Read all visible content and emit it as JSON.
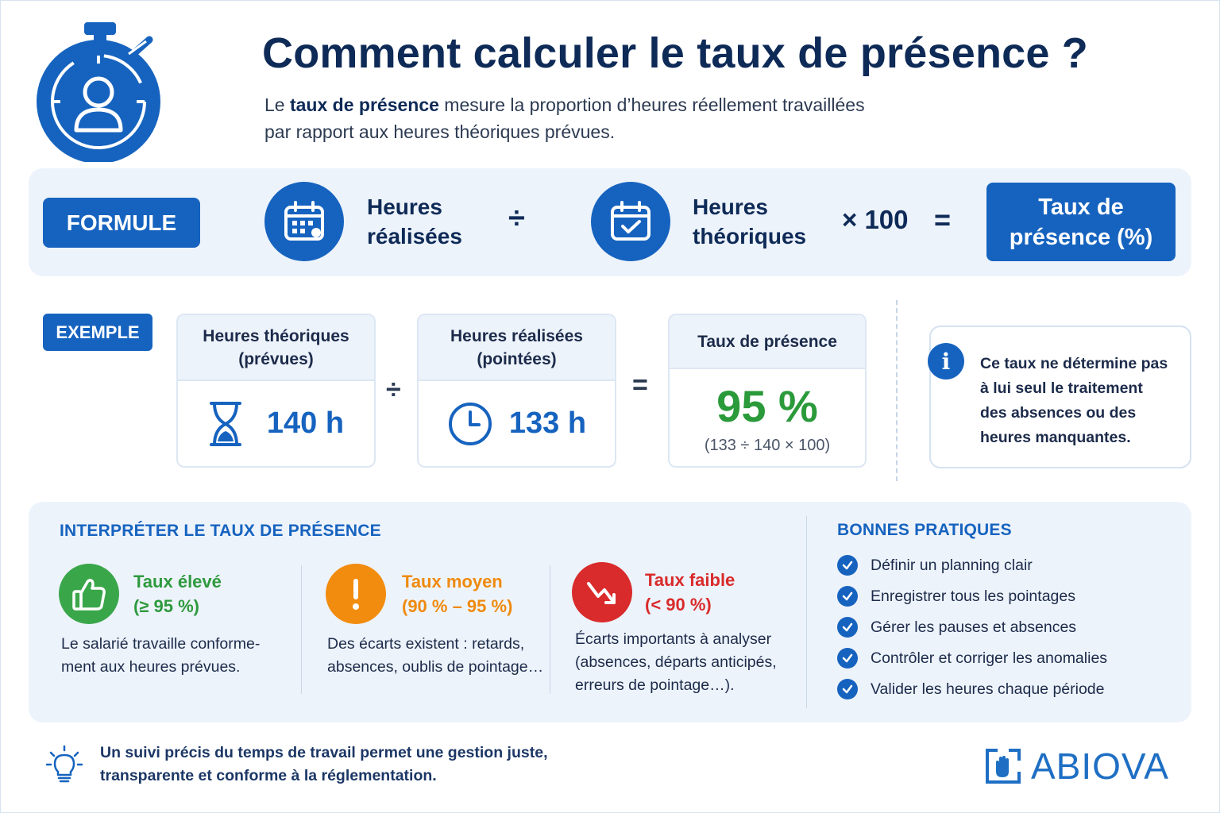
{
  "header": {
    "title": "Comment calculer le taux de présence ?",
    "intro_bold": "taux de présence",
    "intro_before": "Le ",
    "intro_after": " mesure la proportion d’heures réellement travaillées",
    "intro_line2": "par rapport aux heures théoriques prévues."
  },
  "formula": {
    "badge": "FORMULE",
    "term1_line1": "Heures",
    "term1_line2": "réalisées",
    "divide": "÷",
    "term2_line1": "Heures",
    "term2_line2": "théoriques",
    "multiply": "× 100",
    "equals": "=",
    "result_line1": "Taux de",
    "result_line2": "présence (%)",
    "icons": [
      "calendar-icon",
      "calendar-check-icon"
    ]
  },
  "example": {
    "badge": "EXEMPLE",
    "card1_head_line1": "Heures théoriques",
    "card1_head_line2": "(prévues)",
    "card1_value": "140 h",
    "divide": "÷",
    "card2_head_line1": "Heures réalisées",
    "card2_head_line2": "(pointées)",
    "card2_value": "133 h",
    "equals": "=",
    "card3_head": "Taux de présence",
    "card3_value": "95 %",
    "card3_calc": "(133 ÷ 140 × 100)",
    "icons": [
      "hourglass-icon",
      "clock-icon"
    ]
  },
  "info": {
    "icon": "i",
    "line1": "Ce taux ne détermine pas",
    "line2": "à lui seul le traitement",
    "line3": "des absences ou des",
    "line4": "heures manquantes."
  },
  "interpret": {
    "title": "INTERPRÉTER LE TAUX DE PRÉSENCE",
    "levels": [
      {
        "title": "Taux élevé",
        "range": "(≥ 95 %)",
        "text_line1": "Le salarié travaille conforme-",
        "text_line2": "ment aux heures prévues.",
        "color": "#3aa64a",
        "icon": "thumbs-up-icon"
      },
      {
        "title": "Taux moyen",
        "range": "(90 % – 95 %)",
        "text_line1": "Des écarts existent : retards,",
        "text_line2": "absences, oublis de pointage…",
        "color": "#f28c0f",
        "icon": "exclamation-icon"
      },
      {
        "title": "Taux faible",
        "range": "(< 90 %)",
        "text_line1": "Écarts importants à analyser",
        "text_line2": "(absences, départs anticipés,",
        "text_line3": "erreurs de pointage…).",
        "color": "#d92b2b",
        "icon": "trend-down-icon"
      }
    ]
  },
  "practices": {
    "title": "BONNES PRATIQUES",
    "items": [
      "Définir un planning clair",
      "Enregistrer tous les pointages",
      "Gérer les pauses et absences",
      "Contrôler et corriger les anomalies",
      "Valider les heures chaque période"
    ]
  },
  "footer": {
    "line1": "Un suivi précis du temps de travail permet une gestion juste,",
    "line2": "transparente et conforme à la réglementation.",
    "brand": "ABIOVA"
  },
  "colors": {
    "primary": "#1663bf",
    "navy": "#0e2a57",
    "band": "#edf3fb",
    "green": "#2a9a3a"
  }
}
